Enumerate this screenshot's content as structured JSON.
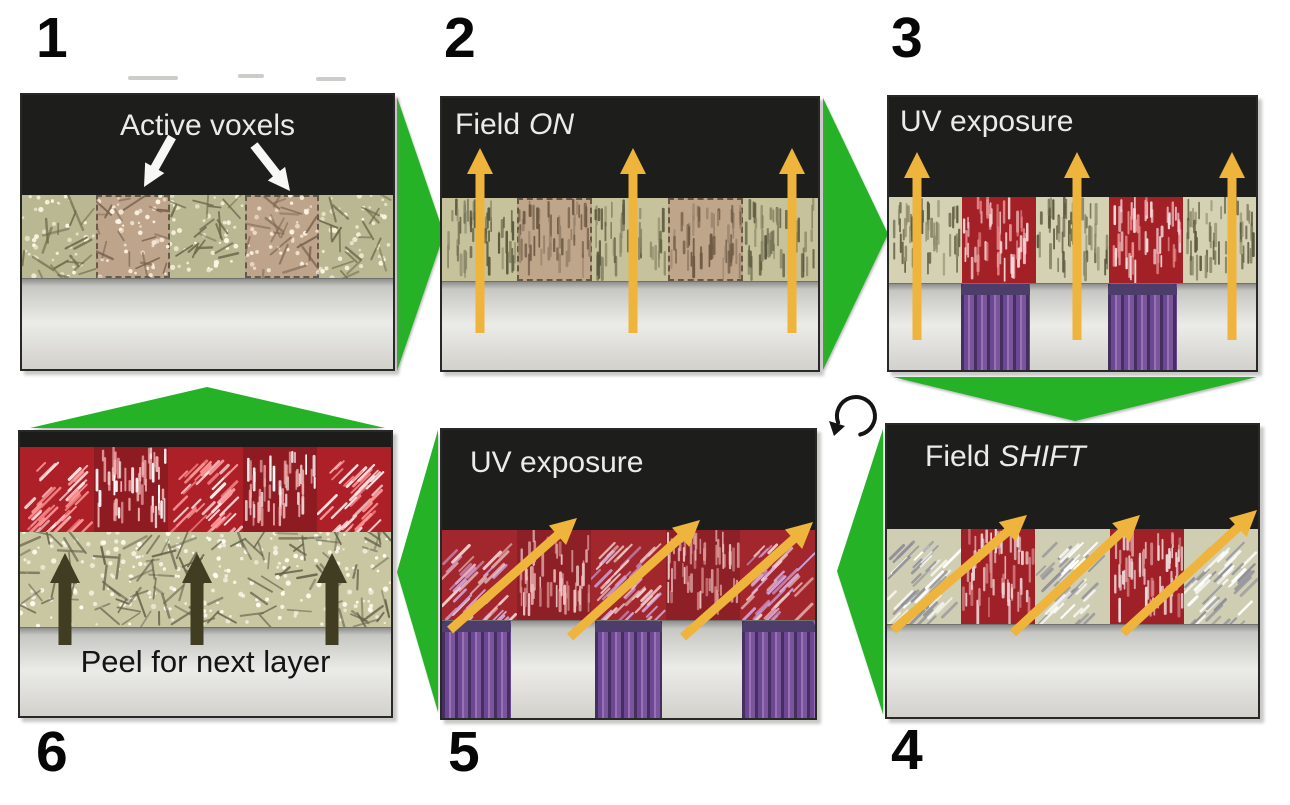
{
  "diagram": {
    "steps": [
      {
        "number": "1",
        "label": "Active voxels"
      },
      {
        "number": "2",
        "label_pre": "Field",
        "label_em": "ON"
      },
      {
        "number": "3",
        "label": "UV exposure"
      },
      {
        "number": "4",
        "label_pre": "Field",
        "label_em": "SHIFT"
      },
      {
        "number": "5",
        "label": "UV exposure"
      },
      {
        "number": "6",
        "label": "Peel for next layer"
      }
    ],
    "cycle_icon_glyph": "↻",
    "flow": "1 → 2 → 3 → 4 → 5 → 6 → 1"
  },
  "colors": {
    "flow_green": "#26b226",
    "field_arrow_yellow": "#eeb43c",
    "cured_voxel_red": "#a32027",
    "uv_beam_purple": "#7b549c",
    "resin_beige": "#c6c49e",
    "resin_tan": "#bfa58a",
    "substrate_gray": "#d9d8d4",
    "panel_black": "#1d1d1b"
  }
}
